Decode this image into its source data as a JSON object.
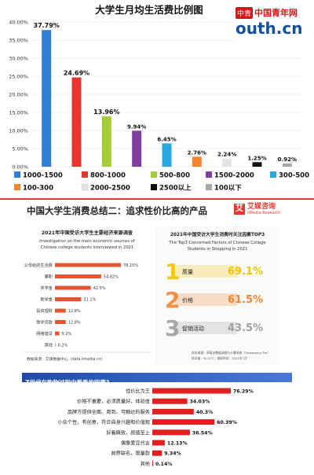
{
  "chart_data": [
    {
      "type": "bar",
      "title": "大学生月均生活费比例图",
      "ylim": [
        0,
        40
      ],
      "yticks": [
        "0.00%",
        "5.00%",
        "10.00%",
        "15.00%",
        "20.00%",
        "25.00%",
        "30.00%",
        "35.00%",
        "40.00%"
      ],
      "categories": [
        "1000-1500",
        "800-1000",
        "500-800",
        "1500-2000",
        "300-500",
        "100-300",
        "2000-2500",
        "2500以上",
        "100以下"
      ],
      "values": [
        37.79,
        24.69,
        13.96,
        9.94,
        6.45,
        2.76,
        2.24,
        1.25,
        0.92
      ],
      "value_labels": [
        "37.79%",
        "24.69%",
        "13.96%",
        "9.94%",
        "6.45%",
        "2.76%",
        "2.24%",
        "1.25%",
        "0.92%"
      ],
      "colors": [
        "#2f7ed8",
        "#e8362f",
        "#a6cc3a",
        "#7c3fa0",
        "#29a8e0",
        "#f2852d",
        "#e4e4e4",
        "#111111",
        "#a9a9a9"
      ],
      "grid": true,
      "legend_position": "bottom"
    },
    {
      "type": "bar",
      "orientation": "horizontal",
      "title": "2021年中国受访大学生主要经济来源调查",
      "subtitle": "Investigation on the main economic sources of Chinese college students interviewed in 2021",
      "categories": [
        "父母给的生活费",
        "兼职",
        "奖学金",
        "助学金",
        "投资理财",
        "助学贷款",
        "网络借贷",
        "其他"
      ],
      "values": [
        78.15,
        54.82,
        42.5,
        31.1,
        12.8,
        12.8,
        5.2,
        0.2
      ],
      "value_labels": [
        "78.15%",
        "54.82%",
        "42.5%",
        "31.1%",
        "12.8%",
        "12.8%",
        "5.2%",
        "0.2%"
      ],
      "color": "#e4572e"
    },
    {
      "type": "table",
      "title": "2021年中国受访大学生消费时关注因素TOP3",
      "subtitle": "The Top3 Concerned Factors of Chinese College Students in Shopping in 2021",
      "ranks": [
        "1",
        "2",
        "3"
      ],
      "factors": [
        "质量",
        "价格",
        "促销活动"
      ],
      "values": [
        69.1,
        61.5,
        43.5
      ],
      "value_labels": [
        "69.1%",
        "61.5%",
        "43.5%"
      ],
      "colors": [
        "#f2c200",
        "#f2852d",
        "#9e9e9e"
      ]
    },
    {
      "type": "bar",
      "orientation": "horizontal",
      "title": "Z世代在购物过程中看重的因素?",
      "categories": [
        "性价比为王",
        "价格不重要，必须质量好，体验佳",
        "品牌方提供全面、周到、可触达的服务",
        "小众个性，有创意，符合自身兴趣和价值观",
        "好看精致，颜值至上",
        "偶像爱豆代言",
        "跨界联名，限量款",
        "其他"
      ],
      "values": [
        76.29,
        34.03,
        40.3,
        60.39,
        36.54,
        12.13,
        9.34,
        0.14
      ],
      "value_labels": [
        "76.29%",
        "34.03%",
        "40.3%",
        "60.39%",
        "36.54%",
        "12.13%",
        "9.34%",
        "0.14%"
      ],
      "color": "#e02020"
    }
  ],
  "watermark": {
    "brand_cn": "中国青年网",
    "brand_en": "outh.cn",
    "logo_text": "中青"
  },
  "section_header": {
    "title": "中国大学生消费总结二：追求性价比高的产品",
    "logo_char": "艾",
    "logo_name": "艾媒咨询",
    "logo_sub": "iiMedia Research"
  },
  "left_panel": {
    "source": "数据来源：艾媒数据中心（data.iimedia.cn）"
  },
  "right_panel": {
    "note1": "样本来源：草莓派数据调查与计算系统（Strawberry Pie）",
    "note2": "样本量：N=571；调研时间：2021年7月"
  }
}
